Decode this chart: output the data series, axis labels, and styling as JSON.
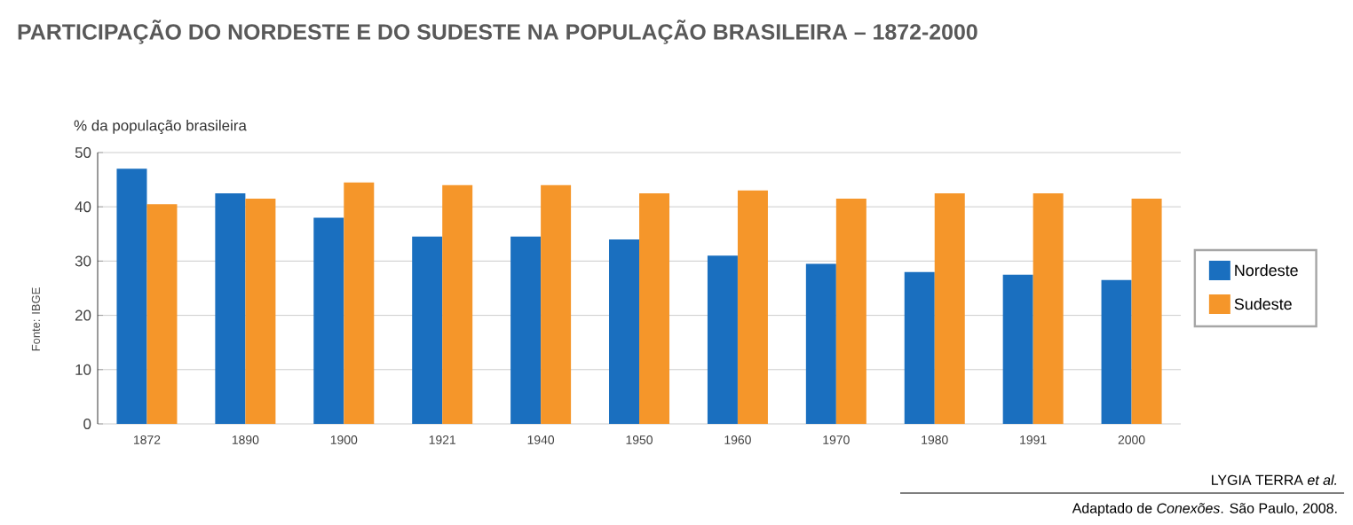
{
  "chart_data": {
    "type": "bar",
    "title": "PARTICIPAÇÃO DO NORDESTE E DO SUDESTE NA POPULAÇÃO BRASILEIRA – 1872-2000",
    "ylabel": "% da população brasileira",
    "categories": [
      "1872",
      "1890",
      "1900",
      "1921",
      "1940",
      "1950",
      "1960",
      "1970",
      "1980",
      "1991",
      "2000"
    ],
    "series": [
      {
        "name": "Nordeste",
        "color": "#1a6fbf",
        "values": [
          47,
          42.5,
          38,
          34.5,
          34.5,
          34,
          31,
          29.5,
          28,
          27.5,
          26.5
        ]
      },
      {
        "name": "Sudeste",
        "color": "#f5962a",
        "values": [
          40.5,
          41.5,
          44.5,
          44,
          44,
          42.5,
          43,
          41.5,
          42.5,
          42.5,
          41.5
        ]
      }
    ],
    "ylim": [
      0,
      50
    ],
    "yticks": [
      0,
      10,
      20,
      30,
      40,
      50
    ],
    "grid": "y",
    "legend": "right",
    "annotations": [
      "Fonte: IBGE",
      "LYGIA TERRA *et al.*",
      "Adaptado de *Conexões*. São Paulo, 2008."
    ]
  }
}
